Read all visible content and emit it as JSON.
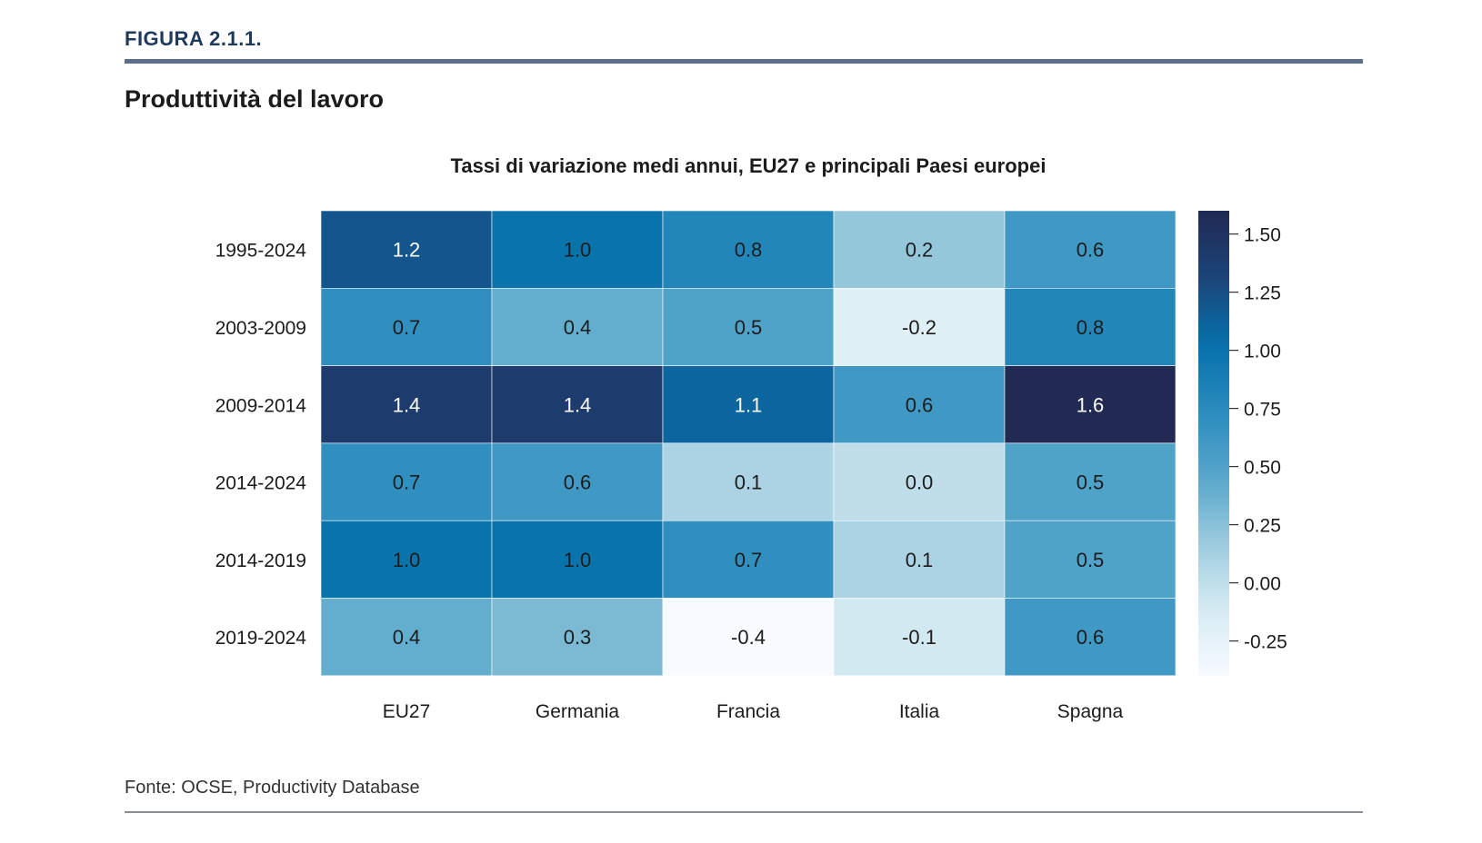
{
  "header": {
    "figure_label": "FIGURA 2.1.1.",
    "title": "Produttività del lavoro"
  },
  "footer": {
    "source": "Fonte: OCSE, Productivity Database"
  },
  "chart_data": {
    "type": "heatmap",
    "title": "Tassi di variazione medi annui, EU27 e principali Paesi europei",
    "columns": [
      "EU27",
      "Germania",
      "Francia",
      "Italia",
      "Spagna"
    ],
    "rows": [
      "1995-2024",
      "2003-2009",
      "2009-2014",
      "2014-2024",
      "2014-2019",
      "2019-2024"
    ],
    "values": [
      [
        1.2,
        1.0,
        0.8,
        0.2,
        0.6
      ],
      [
        0.7,
        0.4,
        0.5,
        -0.2,
        0.8
      ],
      [
        1.4,
        1.4,
        1.1,
        0.6,
        1.6
      ],
      [
        0.7,
        0.6,
        0.1,
        0.0,
        0.5
      ],
      [
        1.0,
        1.0,
        0.7,
        0.1,
        0.5
      ],
      [
        0.4,
        0.3,
        -0.4,
        -0.1,
        0.6
      ]
    ],
    "value_labels": [
      [
        "1.2",
        "1.0",
        "0.8",
        "0.2",
        "0.6"
      ],
      [
        "0.7",
        "0.4",
        "0.5",
        "-0.2",
        "0.8"
      ],
      [
        "1.4",
        "1.4",
        "1.1",
        "0.6",
        "1.6"
      ],
      [
        "0.7",
        "0.6",
        "0.1",
        "0.0",
        "0.5"
      ],
      [
        "1.0",
        "1.0",
        "0.7",
        "0.1",
        "0.5"
      ],
      [
        "0.4",
        "0.3",
        "-0.4",
        "-0.1",
        "0.6"
      ]
    ],
    "colorbar": {
      "range": [
        -0.4,
        1.6
      ],
      "ticks": [
        1.5,
        1.25,
        1.0,
        0.75,
        0.5,
        0.25,
        0.0,
        -0.25
      ],
      "tick_labels": [
        "1.50",
        "1.25",
        "1.00",
        "0.75",
        "0.50",
        "0.25",
        "0.00",
        "-0.25"
      ]
    },
    "colors": {
      "scale": [
        "#f7fbff",
        "#d6ebf3",
        "#9ccbdd",
        "#55a6ca",
        "#2a8bbd",
        "#0570aa",
        "#1c4479",
        "#202a52"
      ],
      "text_dark": "#1c1c1c",
      "text_light": "#ffffff"
    }
  }
}
